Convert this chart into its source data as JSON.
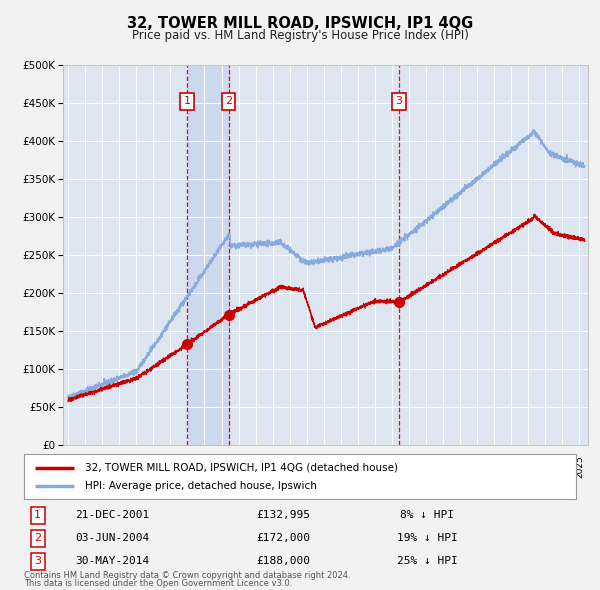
{
  "title": "32, TOWER MILL ROAD, IPSWICH, IP1 4QG",
  "subtitle": "Price paid vs. HM Land Registry's House Price Index (HPI)",
  "legend_line1": "32, TOWER MILL ROAD, IPSWICH, IP1 4QG (detached house)",
  "legend_line2": "HPI: Average price, detached house, Ipswich",
  "footer1": "Contains HM Land Registry data © Crown copyright and database right 2024.",
  "footer2": "This data is licensed under the Open Government Licence v3.0.",
  "transactions": [
    {
      "num": 1,
      "date": "21-DEC-2001",
      "price": 132995,
      "pct": "8%",
      "dir": "↓"
    },
    {
      "num": 2,
      "date": "03-JUN-2004",
      "price": 172000,
      "pct": "19%",
      "dir": "↓"
    },
    {
      "num": 3,
      "date": "30-MAY-2014",
      "price": 188000,
      "pct": "25%",
      "dir": "↓"
    }
  ],
  "transaction_dates_decimal": [
    2001.97,
    2004.42,
    2014.41
  ],
  "transaction_prices": [
    132995,
    172000,
    188000
  ],
  "background_color": "#f0f0f0",
  "plot_bg_color": "#dde6f0",
  "grid_color": "#ffffff",
  "red_color": "#cc0000",
  "blue_color": "#88aadd",
  "shade_color": "#ccd8ee",
  "ylim": [
    0,
    500000
  ],
  "yticks": [
    0,
    50000,
    100000,
    150000,
    200000,
    250000,
    300000,
    350000,
    400000,
    450000,
    500000
  ],
  "xlim_start": 1994.7,
  "xlim_end": 2025.5
}
